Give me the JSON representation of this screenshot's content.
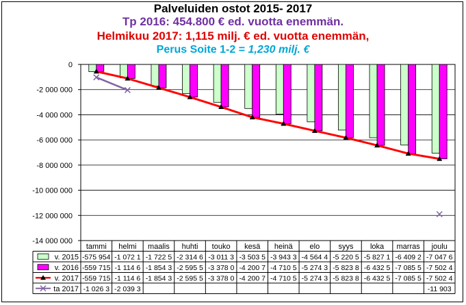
{
  "titles": {
    "line1": "Palveluiden ostot 2015- 2017",
    "line2": "Tp 2016: 454.800 € ed. vuotta enemmän.",
    "line3": "Helmikuu 2017: 1,115 milj. € ed. vuotta enemmän,",
    "line4_prefix": "Perus Soite 1-2 = ",
    "line4_value": "1,230 milj. €"
  },
  "colors": {
    "v2015": "#CCFFCC",
    "v2016": "#FF00FF",
    "v2017": "#FF0000",
    "ta2017": "#8064A2",
    "line2": "#7030A0",
    "line4": "#00A6D6"
  },
  "chart_data": {
    "type": "bar",
    "categories": [
      "tammi",
      "helmi",
      "maalis",
      "huhti",
      "touko",
      "kesä",
      "heinä",
      "elo",
      "syys",
      "loka",
      "marras",
      "joulu"
    ],
    "ylim": [
      -14000000,
      0
    ],
    "yticks": [
      0,
      -2000000,
      -4000000,
      -6000000,
      -8000000,
      -10000000,
      -12000000,
      -14000000
    ],
    "ytick_labels": [
      "0",
      "-2 000 000",
      "-4 000 000",
      "-6 000 000",
      "-8 000 000",
      "-10 000 000",
      "-12 000 000",
      "-14 000 000"
    ],
    "grid": true,
    "series": [
      {
        "name": "v. 2015",
        "kind": "bar",
        "color": "#CCFFCC",
        "values": [
          -575954,
          -1072100,
          -1722500,
          -2314600,
          -3011300,
          -3503500,
          -3943300,
          -4564400,
          -5220500,
          -5827100,
          -6409200,
          -7047600
        ],
        "labels": [
          "-575 954",
          "-1 072 1",
          "-1 722 5",
          "-2 314 6",
          "-3 011 3",
          "-3 503 5",
          "-3 943 3",
          "-4 564 4",
          "-5 220 5",
          "-5 827 1",
          "-6 409 2",
          "-7 047 6"
        ]
      },
      {
        "name": "v. 2016",
        "kind": "bar",
        "color": "#FF00FF",
        "values": [
          -559715,
          -1114600,
          -1854300,
          -2595500,
          -3378000,
          -4200700,
          -4710500,
          -5274300,
          -5823800,
          -6432500,
          -7085500,
          -7502400
        ],
        "labels": [
          "-559 715",
          "-1 114 6",
          "-1 854 3",
          "-2 595 5",
          "-3 378 0",
          "-4 200 7",
          "-4 710 5",
          "-5 274 3",
          "-5 823 8",
          "-6 432 5",
          "-7 085 5",
          "-7 502 4"
        ]
      },
      {
        "name": "v. 2017",
        "kind": "line",
        "color": "#FF0000",
        "values": [
          -559715,
          -1114600,
          -1854300,
          -2595500,
          -3378000,
          -4200700,
          -4710500,
          -5274300,
          -5823800,
          -6432500,
          -7085500,
          -7502400
        ],
        "labels": [
          "-559 715",
          "-1 114 6",
          "-1 854 3",
          "-2 595 5",
          "-3 378 0",
          "-4 200 7",
          "-4 710 5",
          "-5 274 3",
          "-5 823 8",
          "-6 432 5",
          "-7 085 5",
          "-7 502 4"
        ]
      },
      {
        "name": "ta 2017",
        "kind": "line",
        "color": "#8064A2",
        "values": [
          -1026300,
          -2039300,
          null,
          null,
          null,
          null,
          null,
          null,
          null,
          null,
          null,
          -11903000
        ],
        "labels": [
          "-1 026 3",
          "-2 039 3",
          "",
          "",
          "",
          "",
          "",
          "",
          "",
          "",
          "",
          "-11 903"
        ]
      }
    ]
  }
}
